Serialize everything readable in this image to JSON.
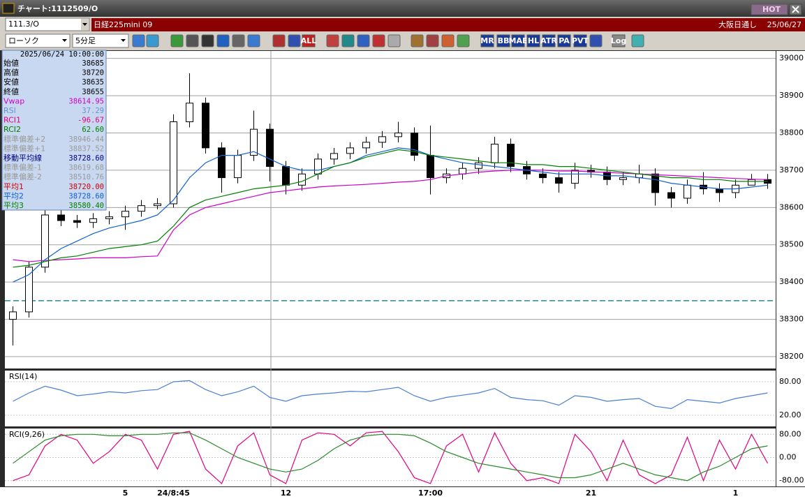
{
  "window": {
    "title": "チャート:1112509/O",
    "hot_button": "HOT"
  },
  "header": {
    "symbol": "111.3/O",
    "instrument": "日経225mini 09",
    "session": "大阪日通し",
    "date": "25/06/27"
  },
  "toolbar": {
    "chart_style": "ローソク",
    "interval": "5分足",
    "buttons": [
      "ALL",
      "MR",
      "BB",
      "MAE",
      "HL",
      "ATR",
      "PA",
      "PVT",
      "Log"
    ]
  },
  "info_panel": {
    "datetime": "2025/06/24 10:00:00",
    "rows": [
      {
        "label": "始値",
        "value": "38685",
        "color": "#000000"
      },
      {
        "label": "高値",
        "value": "38720",
        "color": "#000000"
      },
      {
        "label": "安値",
        "value": "38635",
        "color": "#000000"
      },
      {
        "label": "終値",
        "value": "38655",
        "color": "#000000"
      },
      {
        "label": "Vwap",
        "value": "38614.95",
        "color": "#cc00cc"
      },
      {
        "label": "RSI",
        "value": "37.29",
        "color": "#6d8fd0"
      },
      {
        "label": "RCI1",
        "value": "-96.67",
        "color": "#e0007f"
      },
      {
        "label": "RCI2",
        "value": "62.60",
        "color": "#008000"
      },
      {
        "label": "標準偏差+2",
        "value": "38946.44",
        "color": "#999999"
      },
      {
        "label": "標準偏差+1",
        "value": "38837.52",
        "color": "#999999"
      },
      {
        "label": "移動平均線",
        "value": "38728.60",
        "color": "#000080"
      },
      {
        "label": "標準偏差-1",
        "value": "38619.68",
        "color": "#999999"
      },
      {
        "label": "標準偏差-2",
        "value": "38510.76",
        "color": "#999999"
      },
      {
        "label": "平均1",
        "value": "38720.00",
        "color": "#d00000"
      },
      {
        "label": "平均2",
        "value": "38728.60",
        "color": "#1060d0"
      },
      {
        "label": "平均3",
        "value": "38580.40",
        "color": "#008000"
      }
    ]
  },
  "chart_data": [
    {
      "type": "candlestick",
      "categories": [
        null,
        null,
        null,
        null,
        null,
        null,
        null,
        "5",
        null,
        null,
        "24/8:45",
        null,
        null,
        null,
        null,
        null,
        null,
        "12",
        null,
        null,
        null,
        null,
        null,
        null,
        null,
        null,
        "17:00",
        null,
        null,
        null,
        null,
        null,
        null,
        null,
        null,
        null,
        "21",
        null,
        null,
        null,
        null,
        null,
        null,
        null,
        null,
        "1",
        null,
        null
      ],
      "open": [
        38300,
        38320,
        38440,
        38580,
        38565,
        38560,
        38570,
        38575,
        38590,
        38605,
        38610,
        38830,
        38880,
        38760,
        38680,
        38740,
        38810,
        38710,
        38660,
        38690,
        38730,
        38745,
        38760,
        38775,
        38790,
        38800,
        38740,
        38680,
        38690,
        38705,
        38720,
        38770,
        38710,
        38690,
        38680,
        38665,
        38700,
        38695,
        38675,
        38680,
        38690,
        38640,
        38625,
        38660,
        38650,
        38640,
        38660,
        38675
      ],
      "high": [
        38335,
        38455,
        38595,
        38610,
        38580,
        38585,
        38590,
        38605,
        38620,
        38625,
        38850,
        38960,
        38895,
        38775,
        38755,
        38860,
        38825,
        38725,
        38705,
        38745,
        38760,
        38775,
        38790,
        38805,
        38830,
        38815,
        38820,
        38705,
        38720,
        38735,
        38790,
        38785,
        38725,
        38705,
        38695,
        38720,
        38715,
        38710,
        38695,
        38715,
        38705,
        38655,
        38675,
        38695,
        38665,
        38675,
        38690,
        38690
      ],
      "low": [
        38230,
        38305,
        38425,
        38550,
        38545,
        38545,
        38555,
        38540,
        38575,
        38595,
        38600,
        38815,
        38745,
        38640,
        38665,
        38725,
        38670,
        38635,
        38645,
        38675,
        38715,
        38730,
        38745,
        38760,
        38775,
        38725,
        38635,
        38665,
        38675,
        38690,
        38705,
        38695,
        38675,
        38665,
        38640,
        38650,
        38680,
        38660,
        38660,
        38665,
        38605,
        38600,
        38610,
        38635,
        38615,
        38625,
        38660,
        38650
      ],
      "close": [
        38320,
        38440,
        38580,
        38565,
        38560,
        38570,
        38575,
        38590,
        38605,
        38610,
        38830,
        38880,
        38760,
        38680,
        38740,
        38810,
        38710,
        38660,
        38690,
        38730,
        38745,
        38760,
        38775,
        38790,
        38800,
        38740,
        38680,
        38690,
        38705,
        38720,
        38770,
        38710,
        38690,
        38680,
        38665,
        38700,
        38695,
        38675,
        38680,
        38690,
        38640,
        38625,
        38660,
        38650,
        38640,
        38660,
        38675,
        38665
      ],
      "series": [
        {
          "color": "#cc00cc",
          "values": [
            38460,
            38455,
            38458,
            38460,
            38462,
            38465,
            38465,
            38465,
            38468,
            38470,
            38540,
            38580,
            38600,
            38610,
            38620,
            38630,
            38640,
            38645,
            38650,
            38655,
            38658,
            38660,
            38662,
            38665,
            38668,
            38670,
            38675,
            38685,
            38690,
            38695,
            38698,
            38700,
            38700,
            38700,
            38698,
            38698,
            38696,
            38694,
            38692,
            38690,
            38688,
            38686,
            38684,
            38682,
            38680,
            38678,
            38676,
            38675
          ]
        },
        {
          "color": "#1060d0",
          "values": [
            38400,
            38420,
            38460,
            38490,
            38510,
            38530,
            38545,
            38555,
            38565,
            38580,
            38620,
            38680,
            38720,
            38740,
            38740,
            38750,
            38730,
            38710,
            38700,
            38700,
            38710,
            38720,
            38740,
            38750,
            38760,
            38755,
            38740,
            38730,
            38720,
            38715,
            38710,
            38705,
            38700,
            38695,
            38690,
            38690,
            38690,
            38685,
            38685,
            38680,
            38675,
            38665,
            38660,
            38655,
            38650,
            38650,
            38655,
            38660
          ]
        },
        {
          "color": "#008000",
          "values": [
            38440,
            38445,
            38455,
            38465,
            38470,
            38480,
            38490,
            38495,
            38500,
            38510,
            38550,
            38600,
            38620,
            38630,
            38640,
            38650,
            38655,
            38660,
            38670,
            38690,
            38710,
            38720,
            38735,
            38745,
            38755,
            38750,
            38740,
            38735,
            38730,
            38725,
            38720,
            38720,
            38715,
            38715,
            38710,
            38710,
            38705,
            38700,
            38695,
            38690,
            38685,
            38680,
            38680,
            38675,
            38675,
            38670,
            38670,
            38670
          ]
        }
      ],
      "reference_line": 38350,
      "reference_color": "#2a8a8a",
      "ylim": [
        38170,
        39020
      ],
      "yticks": [
        38200,
        38300,
        38400,
        38500,
        38600,
        38700,
        38800,
        38900,
        39000
      ],
      "grid": true
    },
    {
      "type": "line",
      "title": "RSI(14)",
      "series": [
        {
          "color": "#4a7fd0",
          "values": [
            45,
            60,
            72,
            65,
            55,
            58,
            62,
            60,
            64,
            66,
            80,
            82,
            66,
            55,
            62,
            72,
            52,
            45,
            55,
            58,
            60,
            63,
            62,
            66,
            70,
            55,
            45,
            52,
            56,
            60,
            68,
            52,
            48,
            46,
            38,
            55,
            52,
            45,
            48,
            50,
            36,
            32,
            48,
            45,
            42,
            50,
            55,
            60
          ]
        }
      ],
      "ylim": [
        0,
        100
      ],
      "yticks": [
        {
          "value": 80,
          "label": "80.00"
        },
        {
          "value": 20,
          "label": "20.00"
        }
      ],
      "grid": true
    },
    {
      "type": "line",
      "title": "RCI(9,26)",
      "series": [
        {
          "color": "#e0007f",
          "values": [
            -80,
            -60,
            40,
            80,
            60,
            -20,
            20,
            80,
            60,
            -40,
            80,
            90,
            -40,
            -90,
            40,
            85,
            -60,
            -90,
            60,
            85,
            80,
            40,
            85,
            90,
            20,
            -70,
            -90,
            40,
            80,
            -50,
            85,
            -20,
            -80,
            -70,
            -90,
            80,
            20,
            -80,
            60,
            -60,
            -90,
            -60,
            70,
            -80,
            60,
            -40,
            80,
            -20
          ]
        },
        {
          "color": "#2a8a2a",
          "values": [
            -20,
            20,
            60,
            75,
            80,
            80,
            75,
            75,
            80,
            80,
            85,
            85,
            60,
            30,
            0,
            -20,
            -40,
            -50,
            -40,
            -10,
            30,
            60,
            75,
            80,
            80,
            75,
            50,
            20,
            0,
            -20,
            -30,
            -40,
            -50,
            -60,
            -70,
            -70,
            -60,
            -40,
            -20,
            -40,
            -60,
            -70,
            -80,
            -50,
            -30,
            0,
            30,
            40
          ]
        }
      ],
      "ylim": [
        -100,
        100
      ],
      "yticks": [
        {
          "value": 80,
          "label": "80.00"
        },
        {
          "value": 0,
          "label": "0.00"
        },
        {
          "value": -80,
          "label": "-80.00"
        }
      ],
      "grid": true
    }
  ]
}
